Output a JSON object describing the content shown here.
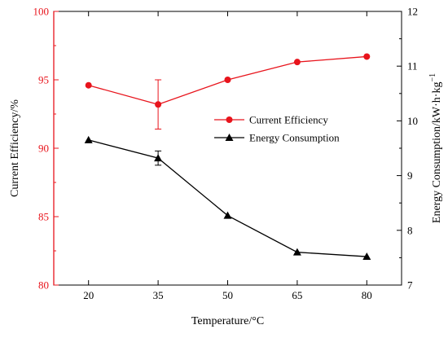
{
  "chart_data": {
    "type": "line",
    "xlabel": "Temperature/°C",
    "x": [
      20,
      35,
      50,
      65,
      80
    ],
    "x_ticks": [
      "20",
      "35",
      "50",
      "65",
      "80"
    ],
    "ylabel_left": "Current Efficiency/%",
    "ylim_left": [
      80,
      100
    ],
    "y_ticks_left": [
      "80",
      "85",
      "90",
      "95",
      "100"
    ],
    "ylabel_right": "Energy Consumption/kW·h·kg",
    "ylabel_right_sup": "−1",
    "ylim_right": [
      7,
      12
    ],
    "y_ticks_right": [
      "7",
      "8",
      "9",
      "10",
      "11",
      "12"
    ],
    "series": [
      {
        "name": "Current Efficiency",
        "axis": "left",
        "marker": "circle",
        "color": "#e8141c",
        "values": [
          94.6,
          93.2,
          95.0,
          96.3,
          96.7
        ],
        "error": [
          null,
          1.8,
          null,
          null,
          null
        ]
      },
      {
        "name": "Energy Consumption",
        "axis": "right",
        "marker": "triangle",
        "color": "#000000",
        "values": [
          9.65,
          9.32,
          8.27,
          7.6,
          7.52
        ],
        "error": [
          null,
          0.13,
          null,
          null,
          null
        ]
      }
    ],
    "legend_position": "center-right",
    "grid": false
  }
}
